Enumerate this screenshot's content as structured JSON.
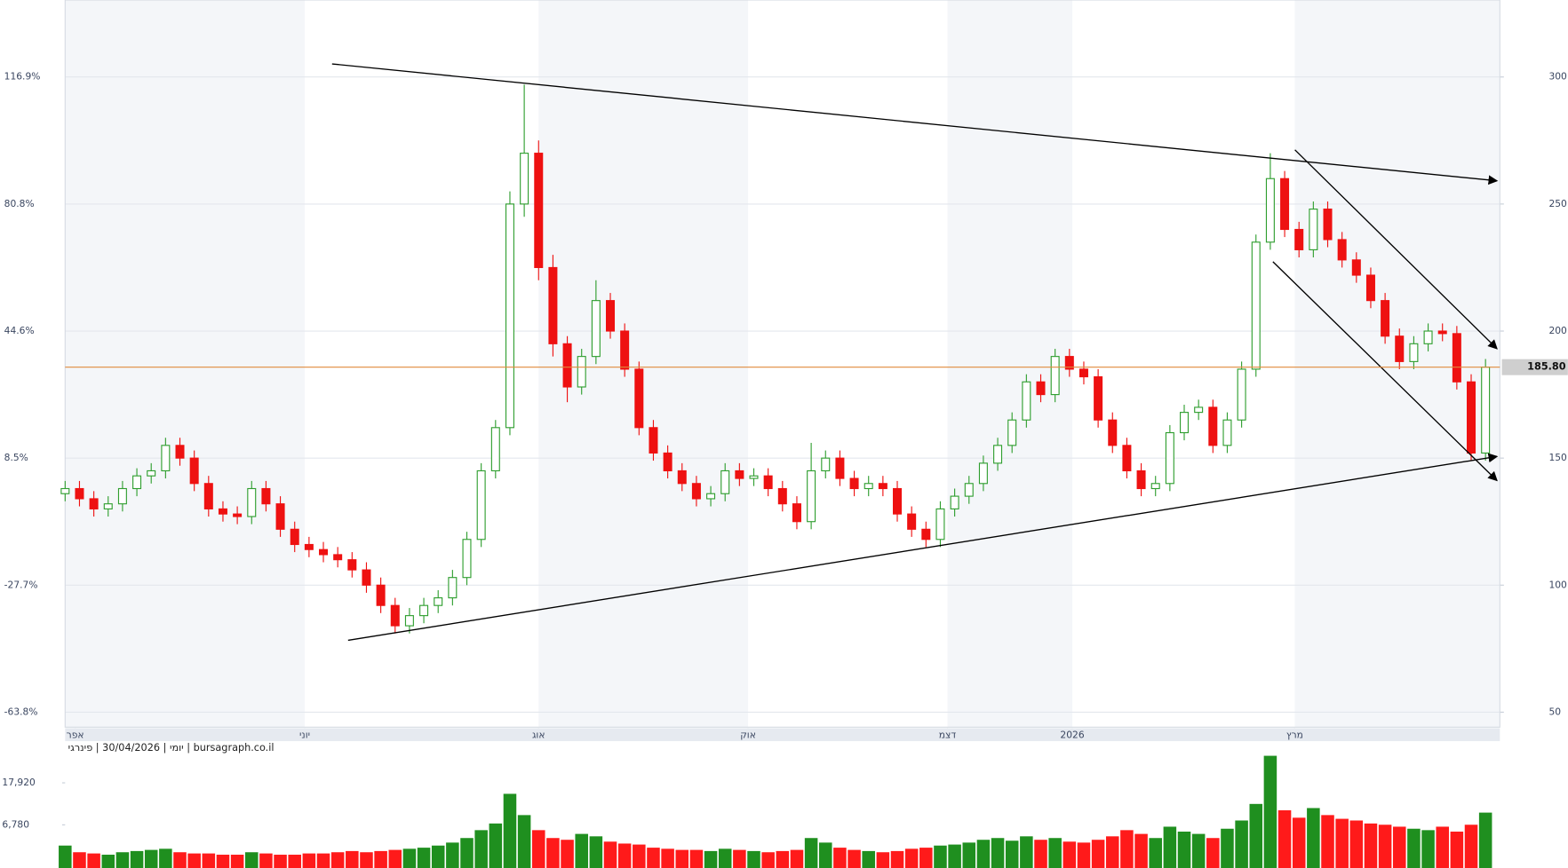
{
  "chart_data": {
    "type": "candlestick",
    "source": "יומי | 30/04/2026 | פינרגי | bursagraph.co.il",
    "xlim": [
      0,
      100
    ],
    "xticks": [
      {
        "value": 0.7,
        "label": "אפר"
      },
      {
        "value": 16.7,
        "label": "יוני"
      },
      {
        "value": 33,
        "label": "אוג"
      },
      {
        "value": 47.6,
        "label": "אוק"
      },
      {
        "value": 61.5,
        "label": "דצמ"
      },
      {
        "value": 70.2,
        "label": "2026"
      },
      {
        "value": 85.7,
        "label": "מרץ"
      }
    ],
    "ylim": [
      44.1,
      330.3
    ],
    "yticks": [
      {
        "value": 300,
        "label": "116.9%"
      },
      {
        "value": 250,
        "label": "80.8%"
      },
      {
        "value": 200,
        "label": "44.6%"
      },
      {
        "value": 150,
        "label": "8.5%"
      },
      {
        "value": 100,
        "label": "-27.7%"
      },
      {
        "value": 50,
        "label": "-63.8%"
      }
    ],
    "y2lim": [
      44.1,
      330.3
    ],
    "y2ticks": [
      300,
      250,
      200,
      150,
      100,
      50
    ],
    "grid": true,
    "up_color": "#2f9e2f",
    "down_color": "#ee1111",
    "last_price": {
      "value": 185.8,
      "label": "185.80"
    },
    "last_price_color": "#e08a3c",
    "open": [
      136,
      138,
      134,
      130,
      132,
      138,
      143,
      145,
      155,
      150,
      140,
      130,
      128,
      127,
      138,
      132,
      122,
      116,
      114,
      112,
      110,
      106,
      100,
      92,
      84,
      88,
      92,
      95,
      103,
      118,
      145,
      162,
      250,
      270,
      225,
      195,
      178,
      190,
      212,
      200,
      185,
      162,
      152,
      145,
      140,
      134,
      136,
      145,
      142,
      143,
      138,
      132,
      125,
      145,
      150,
      142,
      138,
      140,
      138,
      128,
      122,
      118,
      130,
      135,
      140,
      148,
      155,
      165,
      180,
      175,
      190,
      185,
      182,
      165,
      155,
      145,
      138,
      140,
      160,
      168,
      170,
      155,
      165,
      185,
      235,
      260,
      240,
      232,
      248,
      236,
      228,
      222,
      212,
      198,
      188,
      195,
      200,
      199,
      180,
      152
    ],
    "high": [
      141,
      141,
      137,
      135,
      141,
      146,
      148,
      158,
      158,
      153,
      143,
      133,
      131,
      141,
      141,
      135,
      125,
      119,
      117,
      115,
      113,
      109,
      103,
      95,
      91,
      95,
      98,
      106,
      121,
      148,
      165,
      255,
      297,
      275,
      230,
      198,
      193,
      220,
      215,
      203,
      188,
      165,
      155,
      148,
      143,
      139,
      148,
      148,
      146,
      146,
      141,
      135,
      156,
      153,
      153,
      145,
      143,
      143,
      141,
      131,
      125,
      133,
      138,
      143,
      151,
      158,
      168,
      183,
      183,
      193,
      193,
      188,
      185,
      168,
      158,
      148,
      143,
      163,
      171,
      173,
      173,
      168,
      188,
      238,
      270,
      263,
      243,
      251,
      251,
      239,
      231,
      225,
      215,
      201,
      198,
      203,
      203,
      202,
      183,
      189
    ],
    "low": [
      133,
      131,
      127,
      127,
      129,
      135,
      140,
      142,
      147,
      137,
      127,
      125,
      124,
      124,
      129,
      119,
      113,
      111,
      109,
      107,
      103,
      97,
      89,
      81,
      81,
      85,
      89,
      92,
      100,
      115,
      142,
      159,
      245,
      220,
      190,
      172,
      175,
      187,
      197,
      182,
      159,
      149,
      142,
      137,
      131,
      131,
      133,
      139,
      139,
      135,
      129,
      122,
      122,
      142,
      139,
      135,
      135,
      135,
      125,
      119,
      115,
      115,
      127,
      132,
      137,
      145,
      152,
      162,
      172,
      172,
      182,
      179,
      162,
      152,
      142,
      135,
      135,
      137,
      157,
      165,
      152,
      152,
      162,
      182,
      232,
      237,
      229,
      229,
      233,
      225,
      219,
      209,
      195,
      185,
      185,
      192,
      196,
      177,
      149,
      149
    ],
    "close": [
      138,
      134,
      130,
      132,
      138,
      143,
      145,
      155,
      150,
      140,
      130,
      128,
      127,
      138,
      132,
      122,
      116,
      114,
      112,
      110,
      106,
      100,
      92,
      84,
      88,
      92,
      95,
      103,
      118,
      145,
      162,
      250,
      270,
      225,
      195,
      178,
      190,
      212,
      200,
      185,
      162,
      152,
      145,
      140,
      134,
      136,
      145,
      142,
      143,
      138,
      132,
      125,
      145,
      150,
      142,
      138,
      140,
      138,
      128,
      122,
      118,
      130,
      135,
      140,
      148,
      155,
      165,
      180,
      175,
      190,
      185,
      182,
      165,
      155,
      145,
      138,
      140,
      160,
      168,
      170,
      155,
      165,
      185,
      235,
      260,
      240,
      232,
      248,
      236,
      228,
      222,
      212,
      198,
      188,
      195,
      200,
      199,
      180,
      152,
      185.8
    ],
    "volume": {
      "values": [
        4200,
        3600,
        3500,
        3400,
        3600,
        3700,
        3800,
        3900,
        3600,
        3500,
        3500,
        3400,
        3400,
        3600,
        3500,
        3400,
        3400,
        3500,
        3500,
        3600,
        3700,
        3600,
        3700,
        3800,
        3900,
        4000,
        4200,
        4500,
        5000,
        6000,
        7000,
        13900,
        8500,
        6000,
        5000,
        4800,
        5500,
        5200,
        4600,
        4400,
        4300,
        4000,
        3900,
        3800,
        3800,
        3700,
        3900,
        3800,
        3700,
        3600,
        3700,
        3800,
        5000,
        4500,
        4000,
        3800,
        3700,
        3600,
        3700,
        3900,
        4000,
        4200,
        4300,
        4500,
        4800,
        5000,
        4700,
        5200,
        4800,
        5000,
        4600,
        4500,
        4800,
        5200,
        6000,
        5500,
        5000,
        6500,
        5800,
        5500,
        5000,
        6200,
        7500,
        11000,
        33500,
        9500,
        8000,
        10000,
        8500,
        7800,
        7500,
        7000,
        6800,
        6500,
        6200,
        6000,
        6500,
        5800,
        6800,
        9000
      ],
      "ylim": [
        2500,
        47000
      ],
      "log": true,
      "yticks": [
        {
          "value": 17920,
          "label": "17,920"
        },
        {
          "value": 6780,
          "label": "6,780"
        }
      ],
      "up_color": "#1f8f1f",
      "down_color": "#ff1a1a"
    }
  }
}
